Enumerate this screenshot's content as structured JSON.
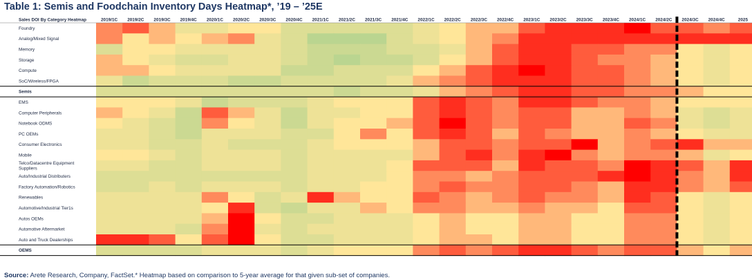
{
  "page": {
    "title": "Table 1: Semis and Foodchain Inventory Days Heatmap*, ’19 – ’25E",
    "source_bold": "Source:",
    "source_text": " Arete Research, Company, FactSet.* Heatmap based on comparison to 5-year average for that given sub-set of companies."
  },
  "chart_data": {
    "type": "heatmap",
    "corner_label": "Sales DOI By Category Heatmap",
    "columns": [
      "2019/1C",
      "2019/2C",
      "2019/3C",
      "2019/4C",
      "2020/1C",
      "2020/2C",
      "2020/3C",
      "2020/4C",
      "2021/1C",
      "2021/2C",
      "2021/3C",
      "2021/4C",
      "2022/1C",
      "2022/2C",
      "2022/3C",
      "2022/4C",
      "2023/1C",
      "2023/2C",
      "2023/3C",
      "2023/4C",
      "2024/1C",
      "2024/2C",
      "2024/3C",
      "2024/4C",
      "2025"
    ],
    "rows": [
      "Foundry",
      "Analog/Mixed Signal",
      "Memory",
      "Storage",
      "Compute",
      "SoC/Wireless/FPGA",
      "Semis",
      "EMS",
      "Computer Peripherals",
      "Notebook ODMS",
      "PC OEMs",
      "Consumer Electronics",
      "Mobile",
      "Telco/Datacentre Equipment Suppliers",
      "Auto/Industrial Distributers",
      "Factory Automation/Robotics",
      "Renewables",
      "Automotive/Industrial Tier1s",
      "Autos OEMs",
      "Automotive Aftermarket",
      "Auto and Truck Dealerships",
      "OEMS"
    ],
    "bold_rows": [
      "Semis",
      "OEMS"
    ],
    "estimate_divider_after": "2024/2C",
    "color_scale": {
      "low": "#a9d18e",
      "mid": "#ffe699",
      "high": "#ff0000"
    },
    "value_range": [
      0,
      10
    ],
    "values": [
      [
        7,
        8,
        6,
        4,
        4,
        5,
        5,
        3,
        3,
        3,
        3,
        3,
        4,
        5,
        6,
        6,
        8,
        9,
        9,
        9,
        10,
        8,
        8,
        7,
        8
      ],
      [
        7,
        5,
        6,
        5,
        6,
        7,
        4,
        3,
        1,
        1,
        1,
        3,
        4,
        5,
        6,
        7,
        9,
        9,
        9,
        9,
        9,
        9,
        9,
        9,
        9
      ],
      [
        3,
        5,
        5,
        4,
        4,
        4,
        4,
        3,
        2,
        2,
        2,
        3,
        3,
        4,
        6,
        8,
        9,
        9,
        8,
        8,
        7,
        7,
        5,
        4,
        5
      ],
      [
        6,
        5,
        4,
        3,
        3,
        4,
        4,
        3,
        2,
        1,
        2,
        2,
        3,
        5,
        6,
        8,
        9,
        9,
        8,
        7,
        7,
        6,
        5,
        4,
        5
      ],
      [
        6,
        6,
        5,
        4,
        4,
        4,
        4,
        2,
        2,
        3,
        3,
        3,
        5,
        6,
        8,
        9,
        10,
        9,
        8,
        8,
        7,
        6,
        5,
        4,
        5
      ],
      [
        4,
        2,
        3,
        3,
        3,
        2,
        2,
        3,
        3,
        3,
        3,
        4,
        6,
        7,
        8,
        9,
        9,
        9,
        8,
        8,
        7,
        6,
        5,
        4,
        5
      ],
      [
        3,
        3,
        3,
        3,
        3,
        3,
        3,
        3,
        3,
        2,
        3,
        3,
        4,
        6,
        7,
        8,
        9,
        9,
        8,
        8,
        7,
        7,
        6,
        5,
        5
      ],
      [
        5,
        5,
        5,
        4,
        2,
        3,
        3,
        3,
        4,
        5,
        5,
        5,
        8,
        9,
        8,
        7,
        9,
        9,
        8,
        7,
        7,
        6,
        5,
        5,
        5
      ],
      [
        6,
        5,
        4,
        2,
        8,
        6,
        4,
        2,
        4,
        4,
        5,
        5,
        8,
        9,
        8,
        7,
        8,
        8,
        6,
        6,
        7,
        6,
        4,
        3,
        4
      ],
      [
        5,
        4,
        3,
        2,
        7,
        5,
        4,
        2,
        4,
        5,
        5,
        6,
        8,
        10,
        8,
        7,
        8,
        8,
        6,
        6,
        8,
        7,
        4,
        3,
        4
      ],
      [
        4,
        4,
        3,
        2,
        4,
        4,
        4,
        3,
        3,
        5,
        7,
        5,
        8,
        9,
        8,
        6,
        8,
        7,
        6,
        6,
        7,
        6,
        5,
        4,
        4
      ],
      [
        4,
        4,
        3,
        3,
        4,
        3,
        3,
        3,
        4,
        5,
        5,
        5,
        6,
        8,
        8,
        7,
        8,
        8,
        10,
        6,
        7,
        8,
        9,
        6,
        6
      ],
      [
        5,
        5,
        4,
        3,
        4,
        4,
        4,
        3,
        4,
        4,
        4,
        4,
        6,
        8,
        9,
        7,
        9,
        10,
        7,
        6,
        7,
        7,
        6,
        4,
        5
      ],
      [
        4,
        4,
        3,
        3,
        4,
        4,
        4,
        3,
        4,
        4,
        4,
        5,
        8,
        8,
        8,
        6,
        9,
        8,
        8,
        7,
        10,
        9,
        8,
        6,
        9
      ],
      [
        3,
        3,
        3,
        3,
        3,
        3,
        3,
        3,
        4,
        4,
        4,
        5,
        7,
        7,
        6,
        7,
        8,
        8,
        8,
        9,
        10,
        9,
        7,
        6,
        9
      ],
      [
        3,
        3,
        4,
        3,
        4,
        4,
        4,
        3,
        4,
        4,
        5,
        5,
        7,
        8,
        7,
        7,
        8,
        8,
        7,
        6,
        9,
        9,
        7,
        6,
        8
      ],
      [
        4,
        4,
        4,
        4,
        7,
        5,
        3,
        4,
        9,
        6,
        5,
        5,
        8,
        7,
        6,
        7,
        8,
        7,
        7,
        6,
        9,
        8,
        5,
        4,
        5
      ],
      [
        4,
        4,
        4,
        4,
        5,
        9,
        3,
        2,
        4,
        4,
        6,
        5,
        7,
        7,
        6,
        6,
        7,
        6,
        6,
        5,
        8,
        8,
        5,
        4,
        5
      ],
      [
        4,
        4,
        4,
        4,
        6,
        10,
        5,
        3,
        3,
        4,
        4,
        4,
        5,
        6,
        5,
        5,
        6,
        6,
        5,
        5,
        7,
        7,
        5,
        4,
        5
      ],
      [
        4,
        4,
        4,
        3,
        7,
        10,
        4,
        3,
        4,
        4,
        4,
        4,
        5,
        6,
        5,
        5,
        6,
        6,
        5,
        5,
        7,
        7,
        5,
        4,
        5
      ],
      [
        9,
        9,
        8,
        5,
        8,
        10,
        5,
        3,
        3,
        4,
        4,
        4,
        5,
        6,
        6,
        5,
        6,
        6,
        5,
        5,
        7,
        7,
        5,
        4,
        5
      ],
      [
        3,
        3,
        3,
        3,
        4,
        4,
        4,
        3,
        4,
        5,
        5,
        5,
        7,
        8,
        7,
        8,
        9,
        9,
        8,
        7,
        8,
        8,
        6,
        5,
        6
      ]
    ]
  }
}
